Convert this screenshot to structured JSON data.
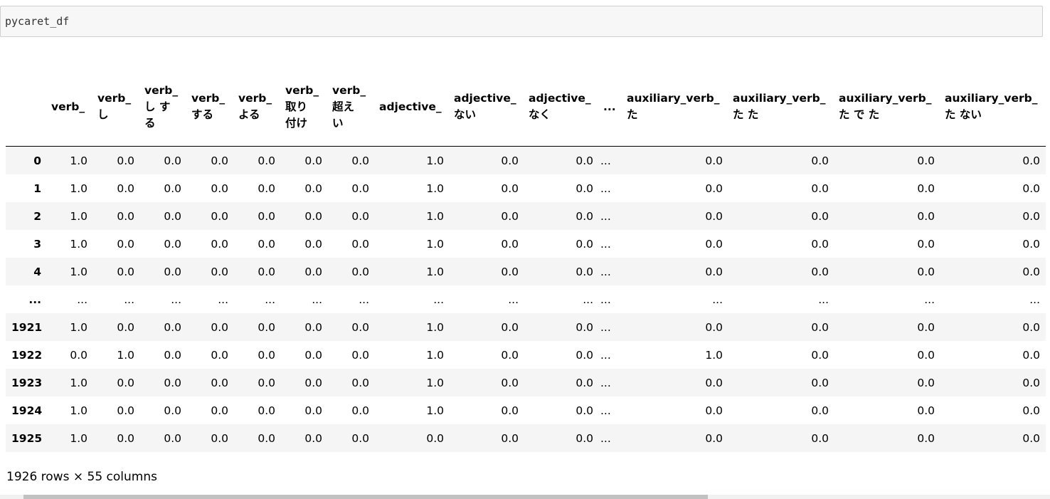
{
  "cell": {
    "code": "pycaret_df"
  },
  "table": {
    "headers": [
      [],
      [
        "verb_"
      ],
      [
        "verb_",
        "し"
      ],
      [
        "verb_",
        "し す",
        "る"
      ],
      [
        "verb_",
        "する"
      ],
      [
        "verb_",
        "よる"
      ],
      [
        "verb_",
        "取り",
        "付け"
      ],
      [
        "verb_",
        "超え",
        "い"
      ],
      [
        "adjective_"
      ],
      [
        "adjective_",
        "ない"
      ],
      [
        "adjective_",
        "なく"
      ],
      [
        "..."
      ],
      [
        "auxiliary_verb_",
        "た"
      ],
      [
        "auxiliary_verb_",
        "た た"
      ],
      [
        "auxiliary_verb_",
        "た で た"
      ],
      [
        "auxiliary_verb_",
        "た ない"
      ]
    ],
    "rows": [
      [
        "0",
        "1.0",
        "0.0",
        "0.0",
        "0.0",
        "0.0",
        "0.0",
        "0.0",
        "1.0",
        "0.0",
        "0.0",
        "...",
        "0.0",
        "0.0",
        "0.0",
        "0.0"
      ],
      [
        "1",
        "1.0",
        "0.0",
        "0.0",
        "0.0",
        "0.0",
        "0.0",
        "0.0",
        "1.0",
        "0.0",
        "0.0",
        "...",
        "0.0",
        "0.0",
        "0.0",
        "0.0"
      ],
      [
        "2",
        "1.0",
        "0.0",
        "0.0",
        "0.0",
        "0.0",
        "0.0",
        "0.0",
        "1.0",
        "0.0",
        "0.0",
        "...",
        "0.0",
        "0.0",
        "0.0",
        "0.0"
      ],
      [
        "3",
        "1.0",
        "0.0",
        "0.0",
        "0.0",
        "0.0",
        "0.0",
        "0.0",
        "1.0",
        "0.0",
        "0.0",
        "...",
        "0.0",
        "0.0",
        "0.0",
        "0.0"
      ],
      [
        "4",
        "1.0",
        "0.0",
        "0.0",
        "0.0",
        "0.0",
        "0.0",
        "0.0",
        "1.0",
        "0.0",
        "0.0",
        "...",
        "0.0",
        "0.0",
        "0.0",
        "0.0"
      ],
      [
        "...",
        "...",
        "...",
        "...",
        "...",
        "...",
        "...",
        "...",
        "...",
        "...",
        "...",
        "...",
        "...",
        "...",
        "...",
        "..."
      ],
      [
        "1921",
        "1.0",
        "0.0",
        "0.0",
        "0.0",
        "0.0",
        "0.0",
        "0.0",
        "1.0",
        "0.0",
        "0.0",
        "...",
        "0.0",
        "0.0",
        "0.0",
        "0.0"
      ],
      [
        "1922",
        "0.0",
        "1.0",
        "0.0",
        "0.0",
        "0.0",
        "0.0",
        "0.0",
        "1.0",
        "0.0",
        "0.0",
        "...",
        "1.0",
        "0.0",
        "0.0",
        "0.0"
      ],
      [
        "1923",
        "1.0",
        "0.0",
        "0.0",
        "0.0",
        "0.0",
        "0.0",
        "0.0",
        "1.0",
        "0.0",
        "0.0",
        "...",
        "0.0",
        "0.0",
        "0.0",
        "0.0"
      ],
      [
        "1924",
        "1.0",
        "0.0",
        "0.0",
        "0.0",
        "0.0",
        "0.0",
        "0.0",
        "1.0",
        "0.0",
        "0.0",
        "...",
        "0.0",
        "0.0",
        "0.0",
        "0.0"
      ],
      [
        "1925",
        "1.0",
        "0.0",
        "0.0",
        "0.0",
        "0.0",
        "0.0",
        "0.0",
        "0.0",
        "0.0",
        "0.0",
        "...",
        "0.0",
        "0.0",
        "0.0",
        "0.0"
      ]
    ],
    "footer": "1926 rows × 55 columns"
  }
}
